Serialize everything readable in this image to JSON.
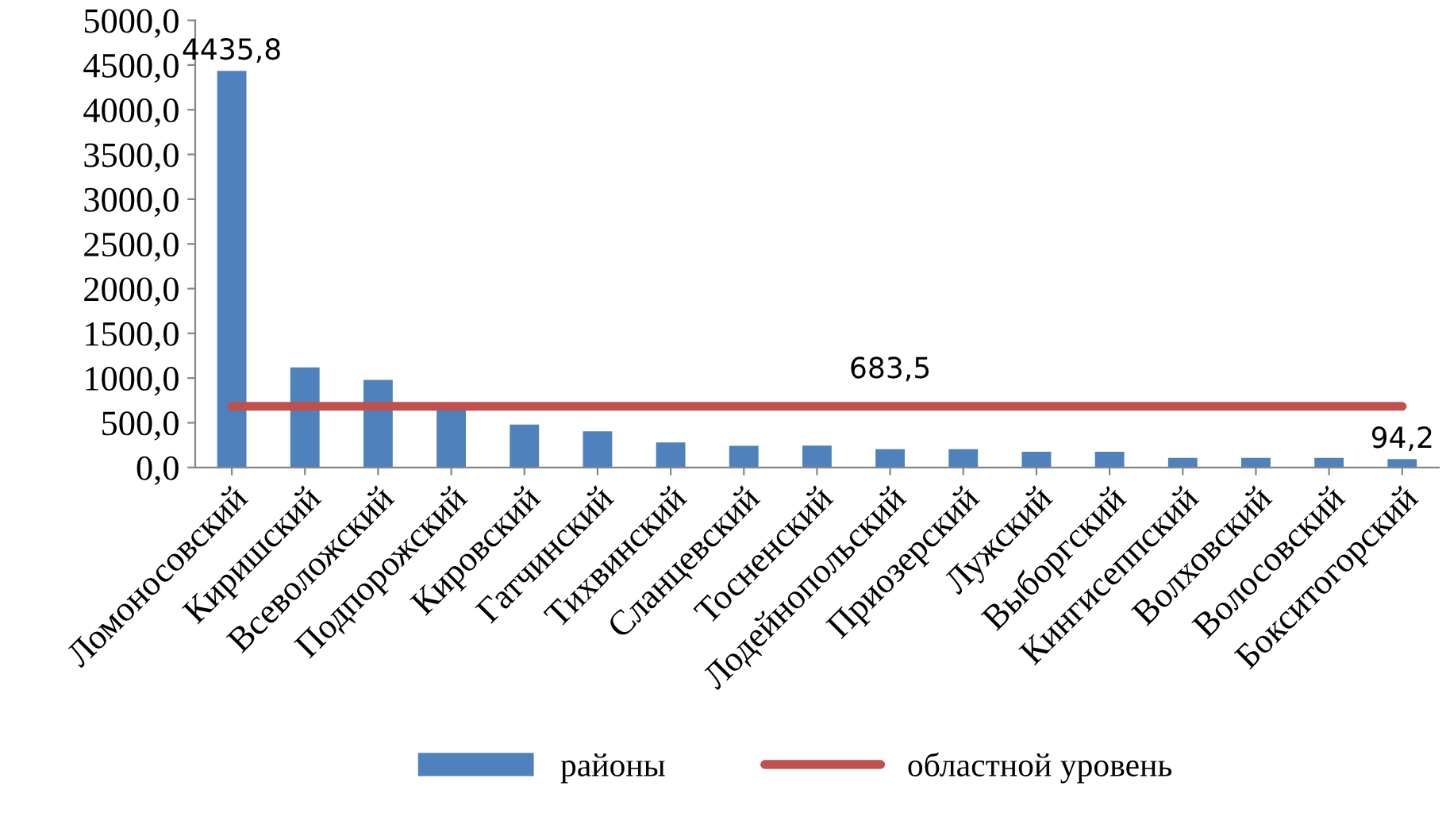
{
  "chart_data": {
    "type": "bar",
    "categories": [
      "Ломоносовский",
      "Киришский",
      "Всеволожский",
      "Подпорожский",
      "Кировский",
      "Гатчинский",
      "Тихвинский",
      "Сланцевский",
      "Тосненский",
      "Лодейнопольский",
      "Приозерский",
      "Лужский",
      "Выборгский",
      "Кингисеппский",
      "Волховский",
      "Волосовский",
      "Бокситогорский"
    ],
    "series": [
      {
        "name": "районы",
        "color": "#4f81bd",
        "values": [
          4435.8,
          1120,
          980,
          650,
          480,
          405,
          280,
          242,
          245,
          205,
          205,
          175,
          175,
          106,
          106,
          106,
          94.2
        ],
        "value_labels": [
          "4435,8",
          null,
          null,
          null,
          null,
          null,
          null,
          null,
          null,
          null,
          null,
          null,
          null,
          null,
          null,
          null,
          "94,2"
        ]
      },
      {
        "name": "областной уровень",
        "type": "line",
        "color": "#c0504d",
        "values": [
          683.5,
          683.5,
          683.5,
          683.5,
          683.5,
          683.5,
          683.5,
          683.5,
          683.5,
          683.5,
          683.5,
          683.5,
          683.5,
          683.5,
          683.5,
          683.5,
          683.5
        ],
        "value_labels": [
          null,
          null,
          null,
          null,
          null,
          null,
          null,
          null,
          null,
          "683,5",
          null,
          null,
          null,
          null,
          null,
          null,
          null
        ]
      }
    ],
    "ylim": [
      0,
      5000
    ],
    "yticks": [
      {
        "value": 0,
        "label": "0,0"
      },
      {
        "value": 500,
        "label": "500,0"
      },
      {
        "value": 1000,
        "label": "1000,0"
      },
      {
        "value": 1500,
        "label": "1500,0"
      },
      {
        "value": 2000,
        "label": "2000,0"
      },
      {
        "value": 2500,
        "label": "2500,0"
      },
      {
        "value": 3000,
        "label": "3000,0"
      },
      {
        "value": 3500,
        "label": "3500,0"
      },
      {
        "value": 4000,
        "label": "4000,0"
      },
      {
        "value": 4500,
        "label": "4500,0"
      },
      {
        "value": 5000,
        "label": "5000,0"
      }
    ],
    "grid": false,
    "legend": "bottom"
  }
}
